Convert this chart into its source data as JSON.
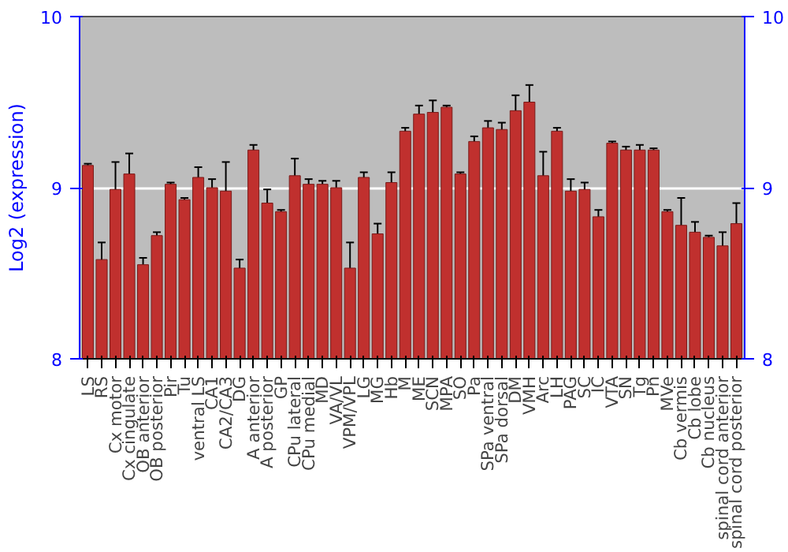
{
  "chart_data": {
    "type": "bar",
    "ylabel": "Log2 (expression)",
    "categories": [
      "LS",
      "RS",
      "Cx motor",
      "Cx cingulate",
      "OB anterior",
      "OB posterior",
      "Pir",
      "Tu",
      "ventral LS",
      "CA1",
      "CA2/CA3",
      "DG",
      "A anterior",
      "A posterior",
      "GP",
      "CPu lateral",
      "CPu medial",
      "MD",
      "VA/VL",
      "VPM/VPL",
      "LG",
      "MG",
      "Hb",
      "M",
      "ME",
      "SCN",
      "MPA",
      "SO",
      "Pa",
      "SPa ventral",
      "SPa dorsal",
      "DM",
      "VMH",
      "Arc",
      "LH",
      "PAG",
      "SC",
      "IC",
      "VTA",
      "SN",
      "Tg",
      "Pn",
      "MVe",
      "Cb vermis",
      "Cb lobe",
      "Cb nucleus",
      "spinal cord anterior",
      "spinal cord posterior"
    ],
    "values": [
      9.13,
      8.58,
      8.99,
      9.08,
      8.55,
      8.72,
      9.02,
      8.93,
      9.06,
      9.0,
      8.98,
      8.53,
      9.22,
      8.91,
      8.86,
      9.07,
      9.02,
      9.02,
      9.0,
      8.53,
      9.06,
      8.73,
      9.03,
      9.33,
      9.43,
      9.44,
      9.47,
      9.08,
      9.27,
      9.35,
      9.34,
      9.45,
      9.5,
      9.07,
      9.33,
      8.98,
      8.99,
      8.83,
      9.26,
      9.22,
      9.22,
      9.22,
      8.86,
      8.78,
      8.74,
      8.71,
      8.66,
      8.79
    ],
    "errors": [
      0.01,
      0.1,
      0.16,
      0.12,
      0.04,
      0.02,
      0.01,
      0.01,
      0.06,
      0.05,
      0.17,
      0.05,
      0.03,
      0.08,
      0.01,
      0.1,
      0.03,
      0.02,
      0.04,
      0.15,
      0.03,
      0.06,
      0.06,
      0.02,
      0.05,
      0.07,
      0.01,
      0.01,
      0.03,
      0.04,
      0.04,
      0.09,
      0.1,
      0.14,
      0.02,
      0.07,
      0.04,
      0.04,
      0.01,
      0.02,
      0.03,
      0.01,
      0.01,
      0.16,
      0.06,
      0.01,
      0.08,
      0.12
    ],
    "color": "#c0302e",
    "ylim": [
      8,
      10
    ],
    "yticks": [
      8,
      9,
      10
    ],
    "y2lim": [
      8,
      10
    ],
    "y2ticks": [
      8,
      9,
      10
    ],
    "grid": "y"
  }
}
